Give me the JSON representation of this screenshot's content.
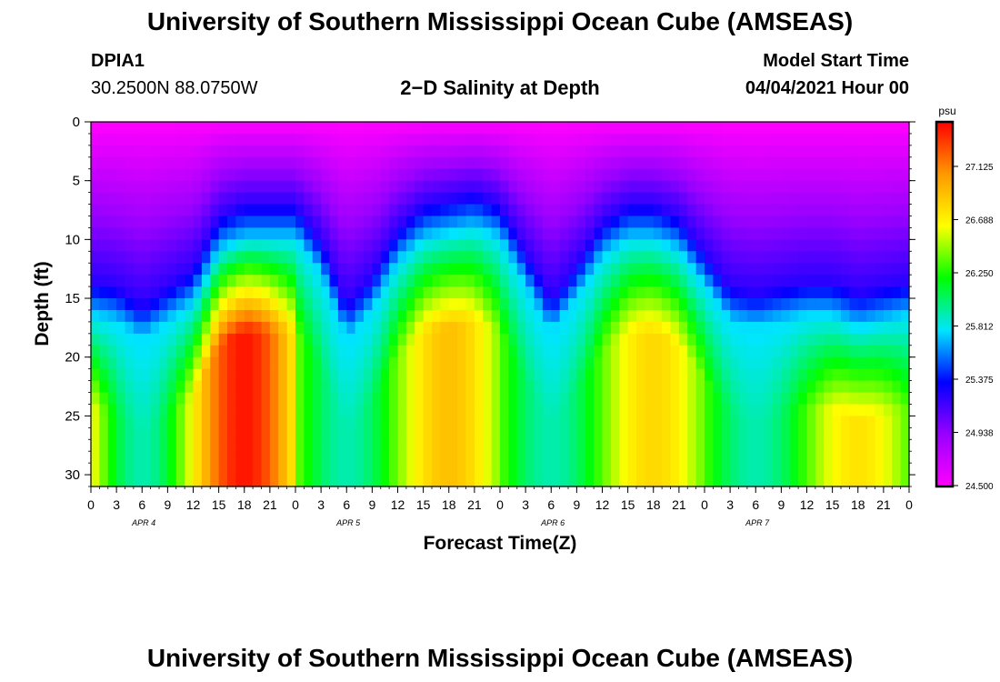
{
  "header": {
    "title": "University of Southern Mississippi Ocean Cube (AMSEAS)",
    "station": "DPIA1",
    "coords": "30.2500N  88.0750W",
    "plot_title": "2−D Salinity at Depth",
    "model_start_label": "Model Start Time",
    "model_start_value": "04/04/2021 Hour 00"
  },
  "footer": {
    "title": "University of Southern Mississippi Ocean Cube (AMSEAS)"
  },
  "chart_data": {
    "type": "heatmap",
    "title": "2-D Salinity at Depth",
    "xlabel": "Forecast Time(Z)",
    "ylabel": "Depth (ft)",
    "x_tick_labels": [
      "0",
      "3",
      "6",
      "9",
      "12",
      "15",
      "18",
      "21",
      "0",
      "3",
      "6",
      "9",
      "12",
      "15",
      "18",
      "21",
      "0",
      "3",
      "6",
      "9",
      "12",
      "15",
      "18",
      "21",
      "0",
      "3",
      "6",
      "9",
      "12",
      "15",
      "18",
      "21",
      "0"
    ],
    "date_labels": [
      {
        "label": "APR  4",
        "hour": 3
      },
      {
        "label": "APR  5",
        "hour": 27
      },
      {
        "label": "APR  6",
        "hour": 51
      },
      {
        "label": "APR  7",
        "hour": 75
      }
    ],
    "xlim_hours": [
      0,
      96
    ],
    "y_tick_labels": [
      "0",
      "5",
      "10",
      "15",
      "20",
      "25",
      "30"
    ],
    "ylim_ft": [
      0,
      31
    ],
    "colorbar": {
      "unit": "psu",
      "tick_labels": [
        "27.125",
        "26.688",
        "26.250",
        "25.812",
        "25.375",
        "24.938",
        "24.500"
      ],
      "range": [
        24.5,
        27.56
      ],
      "colors": [
        "#ff00ff",
        "#9900ff",
        "#0000ff",
        "#00e5ff",
        "#00ff00",
        "#ffff00",
        "#ff9900",
        "#ff0000"
      ]
    },
    "surface_layer_base_ft": [
      {
        "hour": 0,
        "depth": 16.5
      },
      {
        "hour": 3,
        "depth": 17
      },
      {
        "hour": 6,
        "depth": 18.5
      },
      {
        "hour": 9,
        "depth": 17
      },
      {
        "hour": 12,
        "depth": 15.5
      },
      {
        "hour": 15,
        "depth": 11
      },
      {
        "hour": 18,
        "depth": 10
      },
      {
        "hour": 21,
        "depth": 10
      },
      {
        "hour": 24,
        "depth": 10
      },
      {
        "hour": 27,
        "depth": 13
      },
      {
        "hour": 30,
        "depth": 18.5
      },
      {
        "hour": 33,
        "depth": 16
      },
      {
        "hour": 36,
        "depth": 12
      },
      {
        "hour": 39,
        "depth": 10
      },
      {
        "hour": 42,
        "depth": 9.5
      },
      {
        "hour": 45,
        "depth": 9
      },
      {
        "hour": 48,
        "depth": 10
      },
      {
        "hour": 51,
        "depth": 14
      },
      {
        "hour": 54,
        "depth": 18
      },
      {
        "hour": 57,
        "depth": 15
      },
      {
        "hour": 60,
        "depth": 11.5
      },
      {
        "hour": 63,
        "depth": 10
      },
      {
        "hour": 66,
        "depth": 10
      },
      {
        "hour": 69,
        "depth": 11
      },
      {
        "hour": 72,
        "depth": 14
      },
      {
        "hour": 75,
        "depth": 17
      },
      {
        "hour": 78,
        "depth": 17.5
      },
      {
        "hour": 81,
        "depth": 17
      },
      {
        "hour": 84,
        "depth": 16.5
      },
      {
        "hour": 87,
        "depth": 16.5
      },
      {
        "hour": 90,
        "depth": 17.5
      },
      {
        "hour": 93,
        "depth": 17
      },
      {
        "hour": 96,
        "depth": 16.5
      }
    ]
  }
}
